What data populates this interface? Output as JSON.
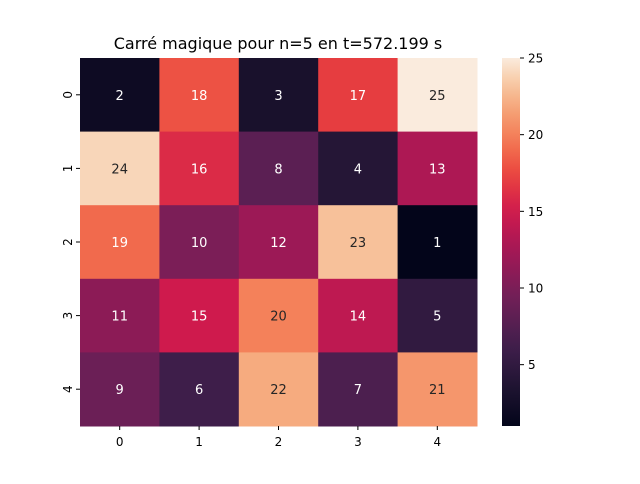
{
  "chart_data": {
    "type": "heatmap",
    "title": "Carré magique pour n=5 en t=572.199 s",
    "xlabel": "",
    "ylabel": "",
    "x_tick_labels": [
      "0",
      "1",
      "2",
      "3",
      "4"
    ],
    "y_tick_labels": [
      "0",
      "1",
      "2",
      "3",
      "4"
    ],
    "values": [
      [
        2,
        18,
        3,
        17,
        25
      ],
      [
        24,
        16,
        8,
        4,
        13
      ],
      [
        19,
        10,
        12,
        23,
        1
      ],
      [
        11,
        15,
        20,
        14,
        5
      ],
      [
        9,
        6,
        22,
        7,
        21
      ]
    ],
    "annotate": true,
    "colormap": "rocket",
    "colorbar": {
      "range": [
        1,
        25
      ],
      "tick_labels": [
        "5",
        "10",
        "15",
        "20",
        "25"
      ],
      "tick_values": [
        5,
        10,
        15,
        20,
        25
      ]
    }
  }
}
